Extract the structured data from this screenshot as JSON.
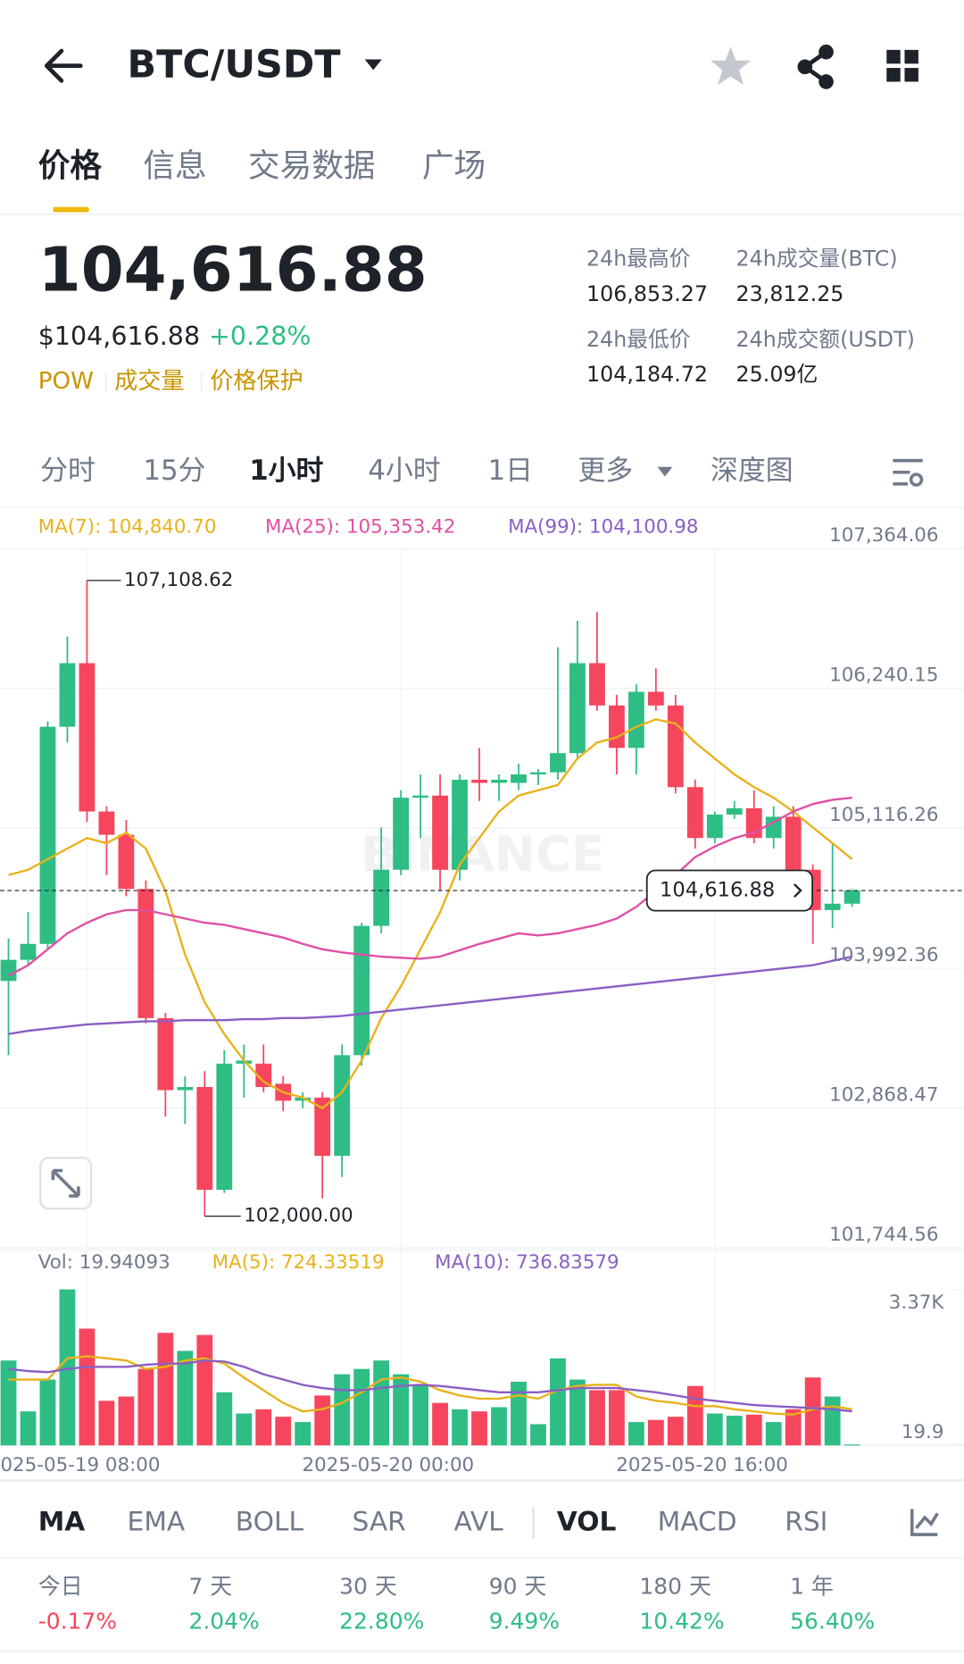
{
  "header": {
    "pair": "BTC/USDT",
    "tabs": [
      "价格",
      "信息",
      "交易数据",
      "广场"
    ],
    "price": "104,616.88",
    "usd_price": "$104,616.88",
    "change": "+0.28%",
    "tags": [
      "POW",
      "成交量",
      "价格保护"
    ],
    "stats": [
      {
        "label": "24h最高价",
        "value": "106,853.27"
      },
      {
        "label": "24h成交量(BTC)",
        "value": "23,812.25"
      },
      {
        "label": "24h最低价",
        "value": "104,184.72"
      },
      {
        "label": "24h成交额(USDT)",
        "value": "25.09亿"
      }
    ]
  },
  "intervals": [
    "分时",
    "15分",
    "1小时",
    "4小时",
    "1日",
    "更多",
    "深度图"
  ],
  "chart_data": [
    {
      "type": "candlestick",
      "categories": [
        null,
        null,
        null,
        null,
        "2025-05-19 08:00",
        null,
        null,
        null,
        null,
        null,
        null,
        null,
        null,
        null,
        null,
        null,
        null,
        null,
        null,
        null,
        "2025-05-20 00:00",
        null,
        null,
        null,
        null,
        null,
        null,
        null,
        null,
        null,
        null,
        null,
        null,
        null,
        null,
        null,
        "2025-05-20 16:00",
        null,
        null,
        null,
        null,
        null,
        null,
        null
      ],
      "open": [
        103890,
        104060,
        104188,
        105933,
        106444,
        105252,
        105065,
        104630,
        103592,
        103013,
        103038,
        102212,
        103226,
        103226,
        103064,
        102928,
        102953,
        102485,
        103294,
        104333,
        104784,
        105363,
        105380,
        104784,
        105507,
        105482,
        105482,
        105550,
        105567,
        105721,
        106444,
        106104,
        105763,
        106214,
        106104,
        105448,
        105039,
        105227,
        105278,
        105039,
        105210,
        104784,
        104460,
        104511
      ],
      "high": [
        104231,
        104443,
        105976,
        106657,
        107108.62,
        105295,
        105184,
        104698,
        103634,
        103124,
        103166,
        103336,
        103379,
        103379,
        103124,
        102996,
        102996,
        103379,
        104358,
        105124,
        105422,
        105550,
        105550,
        105550,
        105763,
        105550,
        105635,
        105593,
        106572,
        106785,
        106853,
        106189,
        106274,
        106402,
        106189,
        105508,
        105252,
        105337,
        105422,
        105295,
        105295,
        104827,
        104997,
        104630
      ],
      "low": [
        103294,
        104018,
        104145,
        105806,
        105167,
        104741,
        104571,
        103549,
        102800,
        102740,
        102000,
        102187,
        102953,
        102996,
        102843,
        102868,
        102144,
        102315,
        103209,
        104273,
        104741,
        105039,
        104613,
        104698,
        105337,
        105337,
        105423,
        105465,
        105508,
        105678,
        106061,
        105550,
        105550,
        106061,
        105397,
        104954,
        104997,
        105193,
        104997,
        104954,
        104741,
        104188,
        104315,
        104486
      ],
      "close": [
        104060,
        104188,
        105933,
        106444,
        105252,
        105065,
        104630,
        103592,
        103013,
        103038,
        102212,
        103226,
        103251,
        103038,
        102928,
        102953,
        102485,
        103294,
        104333,
        104784,
        105363,
        105380,
        104784,
        105507,
        105482,
        105507,
        105550,
        105567,
        105721,
        106444,
        106104,
        105763,
        106214,
        106104,
        105448,
        105039,
        105227,
        105278,
        105039,
        105210,
        104784,
        104460,
        104511,
        104616.88
      ],
      "up_color": "#2ebd85",
      "down_color": "#f6465d",
      "ylim": [
        101744.56,
        107364.06
      ],
      "yticks": [
        {
          "value": 107364.06,
          "label": "107,364.06"
        },
        {
          "value": 106240.15,
          "label": "106,240.15"
        },
        {
          "value": 105116.26,
          "label": "105,116.26"
        },
        {
          "value": 103992.36,
          "label": "103,992.36"
        },
        {
          "value": 102868.47,
          "label": "102,868.47"
        },
        {
          "value": 101744.56,
          "label": "101,744.56"
        }
      ],
      "grid": true,
      "series": [
        {
          "name": "MA(7): 104,840.70",
          "color": "#e9b21a",
          "values": [
            104741,
            104784,
            104869,
            104954,
            105039,
            104997,
            105082,
            104954,
            104614,
            104103,
            103719,
            103464,
            103251,
            103081,
            102996,
            102953,
            102868,
            102996,
            103251,
            103592,
            103847,
            104145,
            104443,
            104826,
            105039,
            105252,
            105380,
            105423,
            105465,
            105678,
            105806,
            105848,
            105933,
            105993,
            105959,
            105806,
            105678,
            105550,
            105448,
            105363,
            105252,
            105124,
            104997,
            104869
          ]
        },
        {
          "name": "MA(25): 105,353.42",
          "color": "#e04fa3",
          "values": [
            103932,
            104017,
            104145,
            104273,
            104358,
            104426,
            104460,
            104460,
            104426,
            104392,
            104358,
            104341,
            104307,
            104273,
            104239,
            104188,
            104145,
            104120,
            104103,
            104086,
            104077,
            104069,
            104086,
            104137,
            104188,
            104230,
            104273,
            104256,
            104273,
            104307,
            104341,
            104392,
            104486,
            104614,
            104741,
            104886,
            104971,
            105039,
            105082,
            105167,
            105252,
            105312,
            105346,
            105363
          ]
        },
        {
          "name": "MA(99): 104,100.98",
          "color": "#8a5ec4",
          "values": [
            103464,
            103490,
            103507,
            103524,
            103541,
            103549,
            103558,
            103566,
            103566,
            103575,
            103575,
            103575,
            103583,
            103583,
            103592,
            103592,
            103600,
            103609,
            103626,
            103643,
            103660,
            103677,
            103694,
            103711,
            103728,
            103745,
            103762,
            103779,
            103796,
            103813,
            103830,
            103847,
            103864,
            103881,
            103898,
            103915,
            103932,
            103949,
            103966,
            103983,
            104000,
            104017,
            104052,
            104086
          ]
        }
      ],
      "annotations": [
        {
          "label": "107,108.62",
          "value": 107108.62
        },
        {
          "label": "102,000.00",
          "value": 102000
        },
        {
          "label": "104,616.88",
          "value": 104616.88
        }
      ],
      "watermark": "BINANCE"
    },
    {
      "type": "bar",
      "title": "Vol: 19.94093",
      "values": [
        1834,
        734,
        1422,
        3370,
        2522,
        963,
        1055,
        1651,
        2431,
        2041,
        2385,
        1147,
        688,
        780,
        619,
        504,
        1078,
        1536,
        1651,
        1834,
        1536,
        1307,
        917,
        780,
        734,
        825,
        1376,
        459,
        1880,
        1422,
        1192,
        1192,
        504,
        550,
        619,
        1284,
        688,
        642,
        665,
        504,
        780,
        1467,
        1055,
        19.94
      ],
      "ylim": [
        0,
        3370
      ],
      "yticks": [
        {
          "value": 3370,
          "label": "3.37K"
        },
        19.9
      ],
      "series": [
        {
          "name": "MA(5): 724.33519",
          "color": "#e9b21a",
          "values": [
            1422,
            1422,
            1422,
            1880,
            1926,
            1880,
            1834,
            1651,
            1697,
            1834,
            1880,
            1766,
            1467,
            1192,
            917,
            734,
            780,
            917,
            1147,
            1422,
            1467,
            1376,
            1192,
            1078,
            1009,
            1009,
            1078,
            1009,
            1192,
            1284,
            1307,
            1307,
            1055,
            963,
            917,
            848,
            848,
            780,
            734,
            688,
            665,
            780,
            848,
            780
          ]
        },
        {
          "name": "MA(10): 736.83579",
          "color": "#8a5ec4",
          "values": [
            1651,
            1605,
            1582,
            1651,
            1697,
            1697,
            1697,
            1743,
            1766,
            1766,
            1834,
            1811,
            1697,
            1536,
            1422,
            1307,
            1238,
            1192,
            1192,
            1238,
            1284,
            1307,
            1284,
            1238,
            1192,
            1147,
            1147,
            1147,
            1192,
            1238,
            1238,
            1238,
            1192,
            1147,
            1078,
            1009,
            963,
            917,
            871,
            848,
            825,
            803,
            780,
            734
          ]
        }
      ]
    }
  ],
  "indicators": [
    "MA",
    "EMA",
    "BOLL",
    "SAR",
    "AVL",
    "VOL",
    "MACD",
    "RSI"
  ],
  "performance": [
    {
      "label": "今日",
      "value": "-0.17%"
    },
    {
      "label": "7 天",
      "value": "2.04%"
    },
    {
      "label": "30 天",
      "value": "22.80%"
    },
    {
      "label": "90 天",
      "value": "9.49%"
    },
    {
      "label": "180 天",
      "value": "10.42%"
    },
    {
      "label": "1 年",
      "value": "56.40%"
    }
  ]
}
